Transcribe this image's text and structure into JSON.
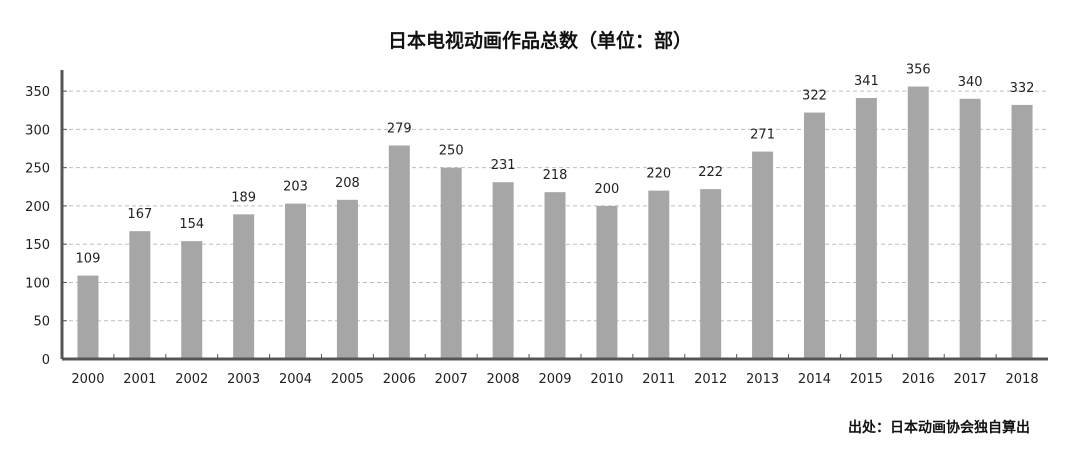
{
  "chart_data": {
    "type": "bar",
    "title": "日本电视动画作品总数（单位：部）",
    "source": "出处：日本动画协会独自算出",
    "categories": [
      "2000",
      "2001",
      "2002",
      "2003",
      "2004",
      "2005",
      "2006",
      "2007",
      "2008",
      "2009",
      "2010",
      "2011",
      "2012",
      "2013",
      "2014",
      "2015",
      "2016",
      "2017",
      "2018"
    ],
    "values": [
      109,
      167,
      154,
      189,
      203,
      208,
      279,
      250,
      231,
      218,
      200,
      220,
      222,
      271,
      322,
      341,
      356,
      340,
      332
    ],
    "ylim": [
      0,
      375
    ],
    "yticks": [
      0,
      50,
      100,
      150,
      200,
      250,
      300,
      350
    ],
    "grid": true,
    "legend": "none",
    "bar_color": "#a6a6a6",
    "axis_color": "#555555",
    "grid_color": "#bdbdbd"
  }
}
